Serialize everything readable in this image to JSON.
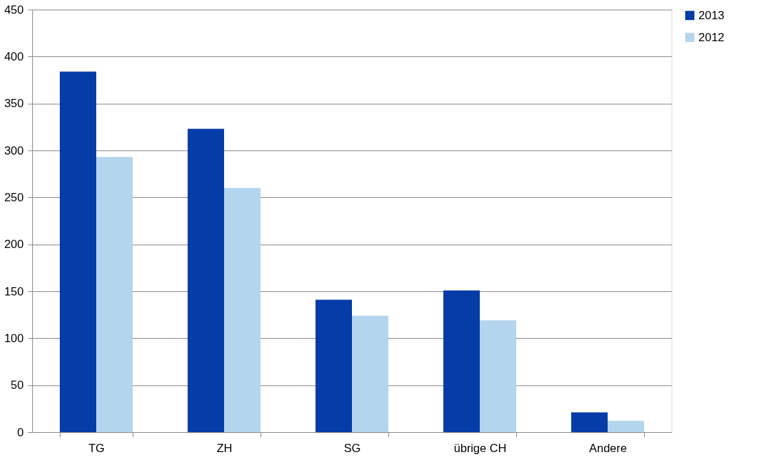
{
  "chart_data": {
    "type": "bar",
    "categories": [
      "TG",
      "ZH",
      "SG",
      "übrige CH",
      "Andere"
    ],
    "series": [
      {
        "name": "2013",
        "color": "#063ca8",
        "values": [
          384,
          323,
          141,
          151,
          21
        ]
      },
      {
        "name": "2012",
        "color": "#b3d5ee",
        "values": [
          293,
          260,
          124,
          119,
          12
        ]
      }
    ],
    "ylim": [
      0,
      450
    ],
    "yticks": [
      0,
      50,
      100,
      150,
      200,
      250,
      300,
      350,
      400,
      450
    ],
    "grid": "y",
    "legend": "right"
  }
}
